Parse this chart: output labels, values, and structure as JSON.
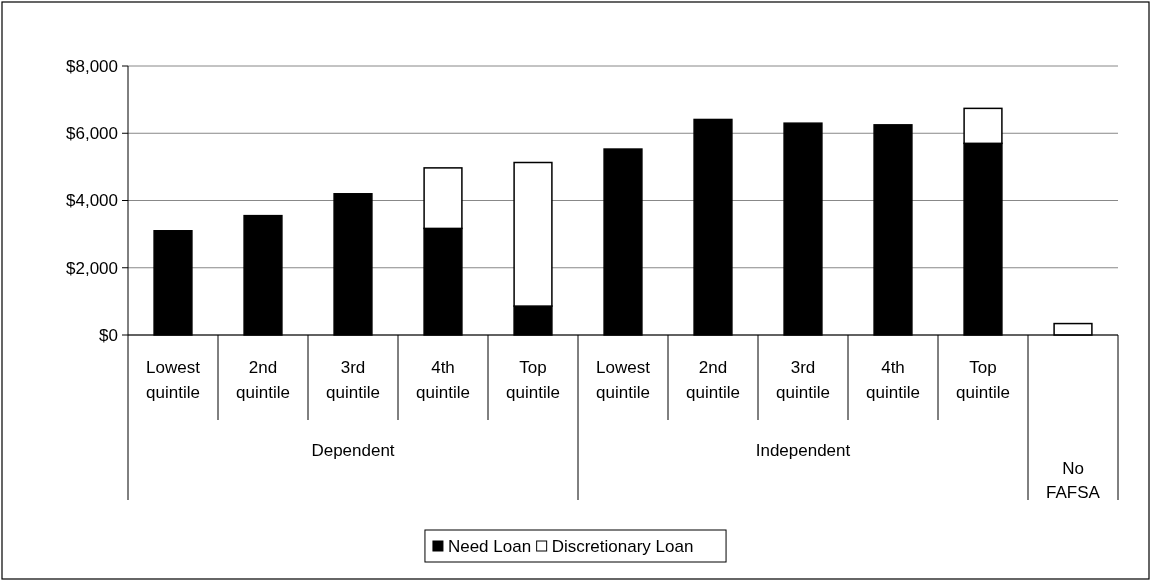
{
  "chart_data": {
    "type": "bar",
    "stacked": true,
    "categories": [
      "Lowest quintile",
      "2nd quintile",
      "3rd quintile",
      "4th quintile",
      "Top quintile",
      "Lowest quintile",
      "2nd quintile",
      "3rd quintile",
      "4th quintile",
      "Top quintile",
      null
    ],
    "series": [
      {
        "name": "Need Loan",
        "color": "#000000",
        "values": [
          3100,
          3550,
          4200,
          3170,
          860,
          5530,
          6410,
          6300,
          6250,
          5700,
          0
        ]
      },
      {
        "name": "Discretionary Loan",
        "color": "#ffffff",
        "values": [
          0,
          0,
          0,
          1800,
          4270,
          0,
          0,
          0,
          0,
          1040,
          340
        ]
      }
    ],
    "ylim": [
      0,
      8000
    ],
    "yticks": [
      {
        "value": 0,
        "label": "$0"
      },
      {
        "value": 2000,
        "label": "$2,000"
      },
      {
        "value": 4000,
        "label": "$4,000"
      },
      {
        "value": 6000,
        "label": "$6,000"
      },
      {
        "value": 8000,
        "label": "$8,000"
      }
    ],
    "grid": "y",
    "legend": "bottom",
    "annotations": [
      "Dependent",
      "Independent",
      "No FAFSA"
    ]
  }
}
